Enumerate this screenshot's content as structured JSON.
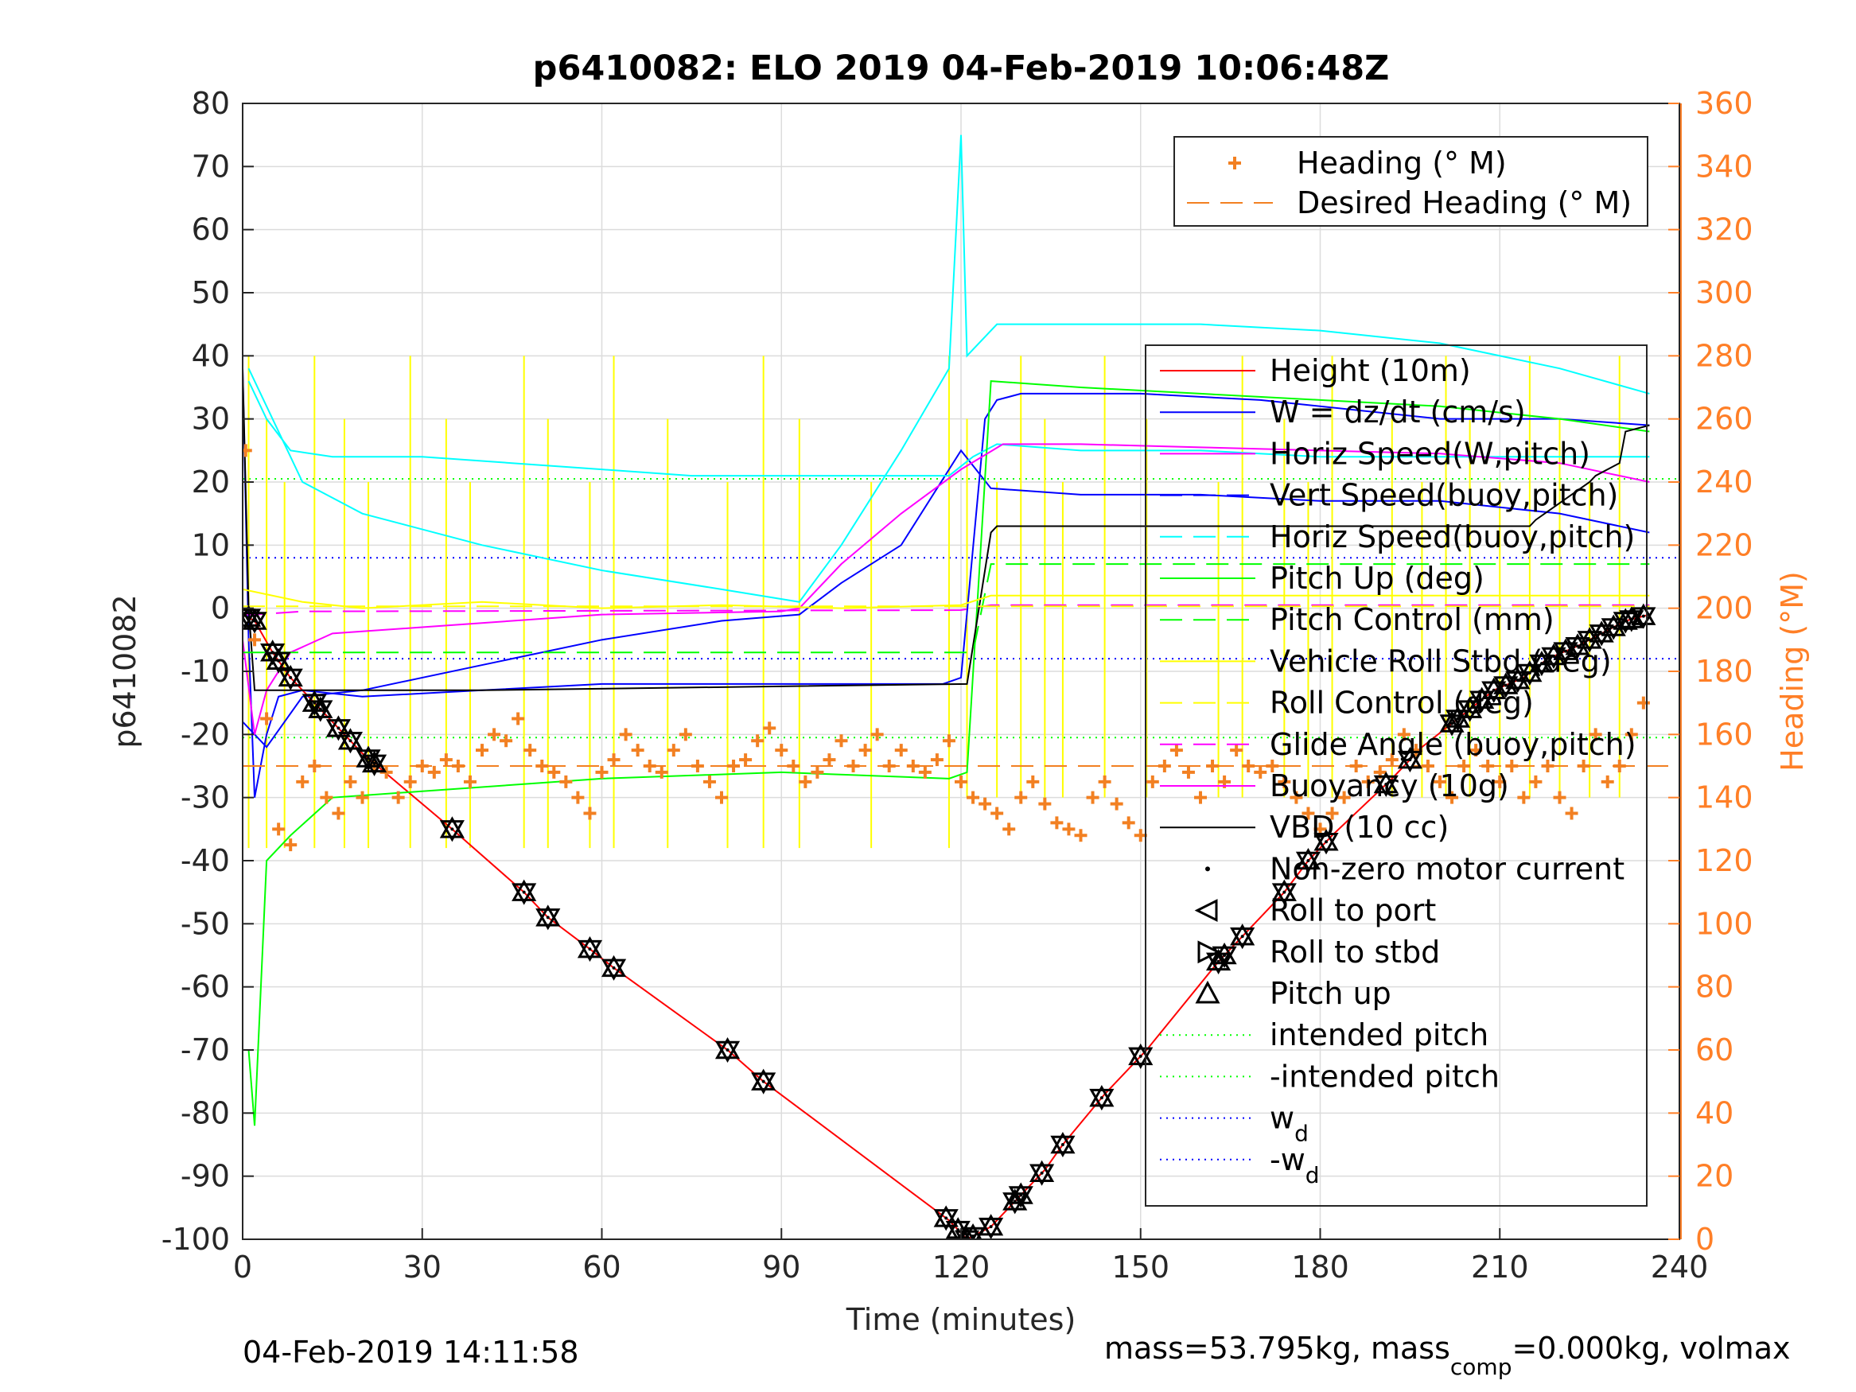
{
  "chart_data": {
    "type": "line",
    "title": "p6410082: ELO 2019 04-Feb-2019 10:06:48Z",
    "xlabel": "Time (minutes)",
    "ylabel": "p6410082",
    "ylabel_right": "Heading (°M)",
    "xlim": [
      0,
      240
    ],
    "ylim": [
      -100,
      80
    ],
    "ylim_right": [
      0,
      360
    ],
    "xticks": [
      "0",
      "30",
      "60",
      "90",
      "120",
      "150",
      "180",
      "210",
      "240"
    ],
    "yticks": [
      "80",
      "70",
      "60",
      "50",
      "40",
      "30",
      "20",
      "10",
      "0",
      "-10",
      "-20",
      "-30",
      "-40",
      "-50",
      "-60",
      "-70",
      "-80",
      "-90",
      "-100"
    ],
    "yticks_right": [
      "360",
      "340",
      "320",
      "300",
      "280",
      "260",
      "240",
      "220",
      "200",
      "180",
      "160",
      "140",
      "120",
      "100",
      "80",
      "60",
      "40",
      "20",
      "0"
    ],
    "grid": true,
    "colors": {
      "axis_right": "#ff7f27",
      "depth": "#ff0000",
      "w": "#0000ff",
      "horiz": "#00ffff",
      "pitch": "#00ff00",
      "roll": "#ffff00",
      "glide": "#ff00ff",
      "vbd": "#000000",
      "heading": "#f28022"
    },
    "legend_heading": {
      "placement": "top-right",
      "entries": [
        {
          "label": "Heading (° M)",
          "color": "#f28022",
          "style": "plus"
        },
        {
          "label": "Desired Heading (° M)",
          "color": "#f28022",
          "style": "dashed"
        }
      ]
    },
    "legend_main": {
      "placement": "right",
      "entries": [
        {
          "label": "Height (10m)",
          "color": "#ff0000",
          "style": "solid"
        },
        {
          "label": "W = dz/dt (cm/s)",
          "color": "#0000ff",
          "style": "solid"
        },
        {
          "label": "Horiz Speed(W,pitch)",
          "color": "#ff00ff",
          "style": "solid"
        },
        {
          "label": "Vert Speed(buoy,pitch)",
          "color": "#0000ff",
          "style": "dashed"
        },
        {
          "label": "Horiz Speed(buoy,pitch)",
          "color": "#00ffff",
          "style": "dashed"
        },
        {
          "label": "Pitch Up (deg)",
          "color": "#00ff00",
          "style": "solid"
        },
        {
          "label": "Pitch Control (mm)",
          "color": "#00ff00",
          "style": "dashed"
        },
        {
          "label": "Vehicle Roll Stbd (deg)",
          "color": "#ffff00",
          "style": "solid"
        },
        {
          "label": "Roll Control (deg)",
          "color": "#ffff00",
          "style": "dashed"
        },
        {
          "label": "Glide Angle (buoy,pitch)",
          "color": "#ff00ff",
          "style": "dashed"
        },
        {
          "label": "Buoyancy (10g)",
          "color": "#ff00ff",
          "style": "solid"
        },
        {
          "label": "VBD (10 cc)",
          "color": "#000000",
          "style": "solid"
        },
        {
          "label": "Non-zero motor current",
          "color": "#000000",
          "style": "dot"
        },
        {
          "label": "Roll to port",
          "color": "#000000",
          "style": "tri-left"
        },
        {
          "label": "Roll to stbd",
          "color": "#000000",
          "style": "tri-right"
        },
        {
          "label": "Pitch up",
          "color": "#000000",
          "style": "tri-up"
        },
        {
          "label": "intended pitch",
          "color": "#00ff00",
          "style": "dotted"
        },
        {
          "label": "-intended pitch",
          "color": "#00ff00",
          "style": "dotted"
        },
        {
          "label": "w",
          "sub": "d",
          "color": "#0000ff",
          "style": "dotted"
        },
        {
          "label": "-w",
          "sub": "d",
          "color": "#0000ff",
          "style": "dotted"
        }
      ]
    },
    "series": [
      {
        "name": "Height (10m)",
        "color": "#ff0000",
        "x": [
          0,
          2,
          5,
          8,
          12,
          16,
          20,
          35,
          47,
          51,
          58,
          62,
          81,
          87,
          118,
          121,
          125,
          130,
          134,
          137,
          144,
          151,
          163,
          167,
          174,
          178,
          182,
          192,
          197,
          201,
          205,
          209,
          214,
          218,
          223,
          227,
          231,
          235
        ],
        "y": [
          -1,
          -2,
          -7,
          -11,
          -15,
          -19,
          -23,
          -35,
          -45,
          -49,
          -54,
          -57,
          -70,
          -75,
          -97,
          -100,
          -98,
          -93,
          -89,
          -85,
          -77,
          -70,
          -56,
          -52,
          -45,
          -40,
          -36,
          -27,
          -22,
          -19,
          -16,
          -13,
          -11,
          -8,
          -6,
          -4,
          -2,
          -1
        ]
      },
      {
        "name": "W = dz/dt (cm/s)",
        "color": "#0000ff",
        "x": [
          0,
          1,
          2,
          4,
          6,
          10,
          20,
          40,
          60,
          80,
          100,
          117,
          120,
          124,
          126,
          130,
          150,
          170,
          200,
          220,
          235
        ],
        "y": [
          38,
          -5,
          -30,
          -20,
          -14,
          -13,
          -14,
          -13,
          -12,
          -12,
          -12,
          -12,
          -11,
          30,
          33,
          34,
          34,
          33,
          30,
          30,
          29
        ]
      },
      {
        "name": "Vert Speed(buoy,pitch)",
        "color": "#0000ff",
        "x": [
          0,
          4,
          10,
          20,
          40,
          60,
          80,
          93,
          100,
          110,
          120,
          125,
          140,
          160,
          180,
          200,
          220,
          235
        ],
        "y": [
          -18,
          -22,
          -14,
          -13,
          -9,
          -5,
          -2,
          -1,
          4,
          10,
          25,
          19,
          18,
          18,
          17,
          17,
          15,
          12
        ]
      },
      {
        "name": "Horiz Speed(buoy,pitch)",
        "color": "#00ffff",
        "x": [
          1,
          5,
          10,
          20,
          40,
          60,
          80,
          93,
          100,
          110,
          118,
          120,
          121,
          123,
          126,
          140,
          160,
          180,
          200,
          220,
          235
        ],
        "y": [
          38,
          30,
          20,
          15,
          10,
          6,
          3,
          1,
          10,
          25,
          38,
          75,
          40,
          42,
          45,
          45,
          45,
          44,
          42,
          38,
          34
        ]
      },
      {
        "name": "Horiz Speed(W,pitch)",
        "color": "#00ffff",
        "x": [
          1,
          4,
          8,
          15,
          30,
          45,
          60,
          75,
          90,
          105,
          118,
          122,
          126,
          140,
          160,
          180,
          200,
          220,
          235
        ],
        "y": [
          36,
          30,
          25,
          24,
          24,
          23,
          22,
          21,
          21,
          21,
          21,
          24,
          26,
          25,
          25,
          24,
          24,
          24,
          24
        ]
      },
      {
        "name": "Pitch Up (deg)",
        "color": "#00ff00",
        "x": [
          1,
          2,
          4,
          8,
          15,
          30,
          60,
          90,
          118,
          121,
          125,
          140,
          160,
          180,
          200,
          220,
          235
        ],
        "y": [
          -70,
          -82,
          -40,
          -36,
          -30,
          -29,
          -27,
          -26,
          -27,
          -26,
          36,
          35,
          34,
          33,
          32,
          30,
          28
        ]
      },
      {
        "name": "Buoyancy (10g)",
        "color": "#ff00ff",
        "x": [
          0,
          2,
          4,
          8,
          15,
          30,
          60,
          90,
          93,
          100,
          110,
          120,
          127,
          140,
          160,
          180,
          200,
          220,
          235
        ],
        "y": [
          -5,
          -20,
          -13,
          -7,
          -4,
          -3,
          -1,
          -0.5,
          0,
          7,
          15,
          22,
          26,
          26,
          25.5,
          25,
          24.5,
          23,
          20
        ]
      },
      {
        "name": "Glide Angle (buoy,pitch)",
        "color": "#ff00ff",
        "dashed": true,
        "x": [
          0,
          2,
          10,
          120,
          125,
          235
        ],
        "y": [
          -1,
          -1,
          -0.5,
          -0.3,
          0.5,
          0.5
        ]
      },
      {
        "name": "VBD (10 cc)",
        "color": "#000000",
        "x": [
          0,
          1,
          2,
          40,
          80,
          121,
          125,
          126,
          215,
          216,
          225,
          226,
          230,
          231,
          235
        ],
        "y": [
          38,
          0,
          -13,
          -13,
          -12.5,
          -12,
          12,
          13,
          13,
          14,
          20,
          21,
          23,
          28,
          29
        ]
      },
      {
        "name": "Pitch Control (mm)",
        "color": "#00ff00",
        "dashed": true,
        "x": [
          0,
          122,
          125,
          235
        ],
        "y": [
          -7,
          -7,
          7,
          7
        ]
      },
      {
        "name": "Vehicle Roll Stbd (deg)",
        "color": "#ffff00",
        "x": [
          0,
          10,
          20,
          40,
          60,
          80,
          100,
          120,
          125,
          140,
          160,
          180,
          200,
          220,
          235
        ],
        "y": [
          3,
          1,
          0,
          1,
          0,
          0.5,
          0,
          0.5,
          2,
          2,
          2,
          2,
          2,
          2,
          2
        ]
      },
      {
        "name": "Roll Control (deg)",
        "color": "#ffff00",
        "dashed": true,
        "x": [
          0,
          235
        ],
        "y": [
          0.3,
          0.3
        ]
      }
    ],
    "reference_lines": [
      {
        "name": "intended pitch",
        "y": 20.5,
        "color": "#00ff00"
      },
      {
        "name": "-intended pitch",
        "y": -20.5,
        "color": "#00ff00"
      },
      {
        "name": "w_d",
        "y": 8,
        "color": "#0000ff"
      },
      {
        "name": "-w_d",
        "y": -8,
        "color": "#0000ff"
      }
    ],
    "roll_spikes_x": [
      1,
      4,
      7,
      12,
      17,
      21,
      28,
      34,
      38,
      47,
      51,
      58,
      62,
      71,
      81,
      87,
      93,
      105,
      118,
      121,
      126,
      130,
      134,
      137,
      144,
      151,
      163,
      167,
      174,
      178,
      182,
      192,
      197,
      201,
      205,
      210,
      215,
      220,
      225,
      230
    ],
    "heading": {
      "desired_deg": 150,
      "x": [
        0.5,
        2,
        4,
        6,
        8,
        10,
        12,
        14,
        16,
        18,
        20,
        22,
        24,
        26,
        28,
        30,
        32,
        34,
        36,
        38,
        40,
        42,
        44,
        46,
        48,
        50,
        52,
        54,
        56,
        58,
        60,
        62,
        64,
        66,
        68,
        70,
        72,
        74,
        76,
        78,
        80,
        82,
        84,
        86,
        88,
        90,
        92,
        94,
        96,
        98,
        100,
        102,
        104,
        106,
        108,
        110,
        112,
        114,
        116,
        118,
        120,
        122,
        124,
        126,
        128,
        130,
        132,
        134,
        136,
        138,
        140,
        142,
        144,
        146,
        148,
        150,
        152,
        154,
        156,
        158,
        160,
        162,
        164,
        166,
        168,
        170,
        172,
        174,
        176,
        178,
        180,
        182,
        184,
        186,
        188,
        190,
        192,
        194,
        196,
        198,
        200,
        202,
        204,
        206,
        208,
        210,
        212,
        214,
        216,
        218,
        220,
        222,
        224,
        226,
        228,
        230,
        232,
        234
      ],
      "y": [
        250,
        190,
        165,
        130,
        125,
        145,
        150,
        140,
        135,
        145,
        140,
        150,
        148,
        140,
        145,
        150,
        148,
        152,
        150,
        145,
        155,
        160,
        158,
        165,
        155,
        150,
        148,
        145,
        140,
        135,
        148,
        152,
        160,
        155,
        150,
        148,
        155,
        160,
        150,
        145,
        140,
        150,
        152,
        158,
        162,
        155,
        150,
        145,
        148,
        152,
        158,
        150,
        155,
        160,
        150,
        155,
        150,
        148,
        152,
        158,
        145,
        140,
        138,
        135,
        130,
        140,
        145,
        138,
        132,
        130,
        128,
        140,
        145,
        138,
        132,
        128,
        145,
        150,
        155,
        148,
        140,
        150,
        145,
        155,
        150,
        148,
        150,
        145,
        140,
        135,
        130,
        135,
        140,
        150,
        145,
        148,
        152,
        160,
        155,
        150,
        145,
        140,
        150,
        155,
        150,
        145,
        150,
        140,
        145,
        150,
        140,
        135,
        150,
        160,
        145,
        150,
        160,
        170
      ]
    },
    "motor_events_x": [
      1,
      2,
      5,
      6,
      8,
      12,
      13,
      16,
      18,
      21,
      22,
      35,
      47,
      51,
      58,
      62,
      81,
      87,
      117.5,
      119.5,
      121,
      122,
      125,
      129,
      130,
      133.5,
      137,
      143.5,
      150,
      163,
      164,
      167,
      174,
      178,
      181,
      191,
      195,
      202,
      203,
      205,
      207,
      209,
      211,
      213,
      215,
      217,
      219,
      221,
      223,
      225,
      227,
      229,
      231,
      232,
      234
    ],
    "footer_left": "04-Feb-2019 14:11:58",
    "footer_right_pre": "mass=53.795kg, mass",
    "footer_right_sub": "comp",
    "footer_right_post": "=0.000kg, volmax"
  }
}
